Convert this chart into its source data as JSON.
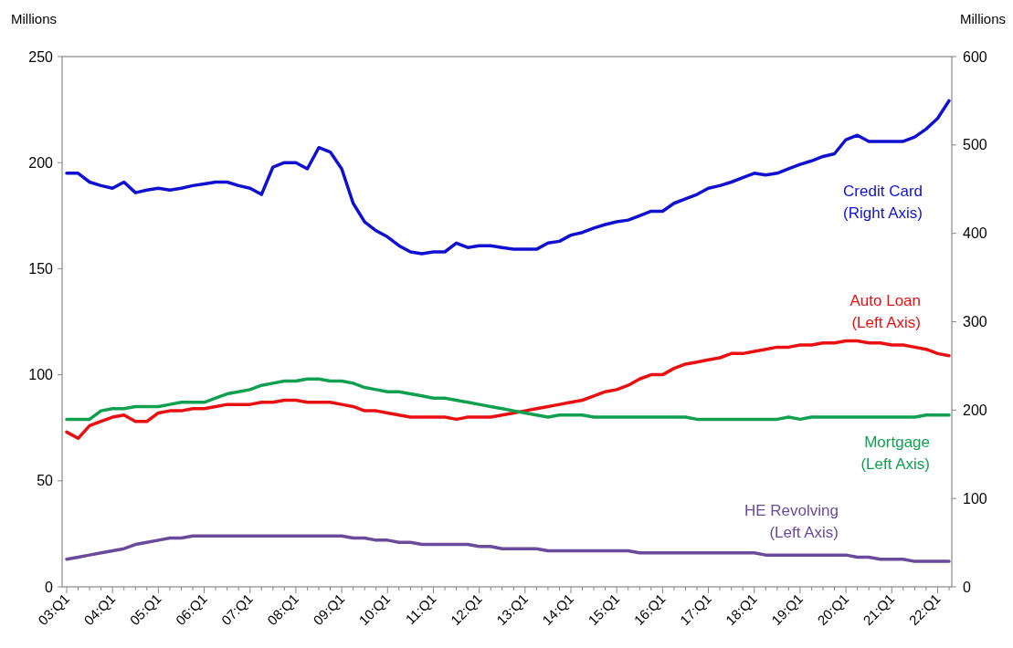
{
  "chart_data": {
    "type": "line",
    "ylabel": "Millions",
    "y2label": "Millions",
    "categories": [
      "03:Q1",
      null,
      null,
      null,
      "04:Q1",
      null,
      null,
      null,
      "05:Q1",
      null,
      null,
      null,
      "06:Q1",
      null,
      null,
      null,
      "07:Q1",
      null,
      null,
      null,
      "08:Q1",
      null,
      null,
      null,
      "09:Q1",
      null,
      null,
      null,
      "10:Q1",
      null,
      null,
      null,
      "11:Q1",
      null,
      null,
      null,
      "12:Q1",
      null,
      null,
      null,
      "13:Q1",
      null,
      null,
      null,
      "14:Q1",
      null,
      null,
      null,
      "15:Q1",
      null,
      null,
      null,
      "16:Q1",
      null,
      null,
      null,
      "17:Q1",
      null,
      null,
      null,
      "18:Q1",
      null,
      null,
      null,
      "19:Q1",
      null,
      null,
      null,
      "20:Q1",
      null,
      null,
      null,
      "21:Q1",
      null,
      null,
      null,
      "22:Q1",
      null
    ],
    "ylim": [
      0,
      250
    ],
    "yticks": [
      0,
      50,
      100,
      150,
      200,
      250
    ],
    "y2lim": [
      0,
      600
    ],
    "y2ticks": [
      0,
      100,
      200,
      300,
      400,
      500,
      600
    ],
    "grid": false,
    "legend": false,
    "marker": "none",
    "line_style": "solid",
    "series": [
      {
        "name": "Credit Card (Right Axis)",
        "color": "#1010d0",
        "axis": "y2",
        "values": [
          468,
          468,
          458,
          454,
          451,
          458,
          446,
          449,
          451,
          449,
          451,
          454,
          456,
          458,
          458,
          454,
          451,
          444,
          475,
          480,
          480,
          473,
          497,
          492,
          473,
          434,
          413,
          403,
          396,
          386,
          379,
          377,
          379,
          379,
          389,
          384,
          386,
          386,
          384,
          382,
          382,
          382,
          389,
          391,
          398,
          401,
          406,
          410,
          413,
          415,
          420,
          425,
          425,
          434,
          439,
          444,
          451,
          454,
          458,
          463,
          468,
          466,
          468,
          473,
          478,
          482,
          487,
          490,
          506,
          511,
          504,
          504,
          504,
          504,
          509,
          518,
          530,
          550
        ]
      },
      {
        "name": "Auto Loan (Left Axis)",
        "color": "#e81010",
        "values": [
          73,
          70,
          76,
          78,
          80,
          81,
          78,
          78,
          82,
          83,
          83,
          84,
          84,
          85,
          86,
          86,
          86,
          87,
          87,
          88,
          88,
          87,
          87,
          87,
          86,
          85,
          83,
          83,
          82,
          81,
          80,
          80,
          80,
          80,
          79,
          80,
          80,
          80,
          81,
          82,
          83,
          84,
          85,
          86,
          87,
          88,
          90,
          92,
          93,
          95,
          98,
          100,
          100,
          103,
          105,
          106,
          107,
          108,
          110,
          110,
          111,
          112,
          113,
          113,
          114,
          114,
          115,
          115,
          116,
          116,
          115,
          115,
          114,
          114,
          113,
          112,
          110,
          109
        ]
      },
      {
        "name": "Mortgage (Left Axis)",
        "color": "#10a050",
        "values": [
          79,
          79,
          79,
          83,
          84,
          84,
          85,
          85,
          85,
          86,
          87,
          87,
          87,
          89,
          91,
          92,
          93,
          95,
          96,
          97,
          97,
          98,
          98,
          97,
          97,
          96,
          94,
          93,
          92,
          92,
          91,
          90,
          89,
          89,
          88,
          87,
          86,
          85,
          84,
          83,
          82,
          81,
          80,
          81,
          81,
          81,
          80,
          80,
          80,
          80,
          80,
          80,
          80,
          80,
          80,
          79,
          79,
          79,
          79,
          79,
          79,
          79,
          79,
          80,
          79,
          80,
          80,
          80,
          80,
          80,
          80,
          80,
          80,
          80,
          80,
          81,
          81,
          81
        ]
      },
      {
        "name": "HE Revolving (Left Axis)",
        "color": "#6a4a9a",
        "values": [
          13,
          14,
          15,
          16,
          17,
          18,
          20,
          21,
          22,
          23,
          23,
          24,
          24,
          24,
          24,
          24,
          24,
          24,
          24,
          24,
          24,
          24,
          24,
          24,
          24,
          23,
          23,
          22,
          22,
          21,
          21,
          20,
          20,
          20,
          20,
          20,
          19,
          19,
          18,
          18,
          18,
          18,
          17,
          17,
          17,
          17,
          17,
          17,
          17,
          17,
          16,
          16,
          16,
          16,
          16,
          16,
          16,
          16,
          16,
          16,
          16,
          15,
          15,
          15,
          15,
          15,
          15,
          15,
          15,
          14,
          14,
          13,
          13,
          13,
          12,
          12,
          12,
          12
        ]
      }
    ]
  }
}
